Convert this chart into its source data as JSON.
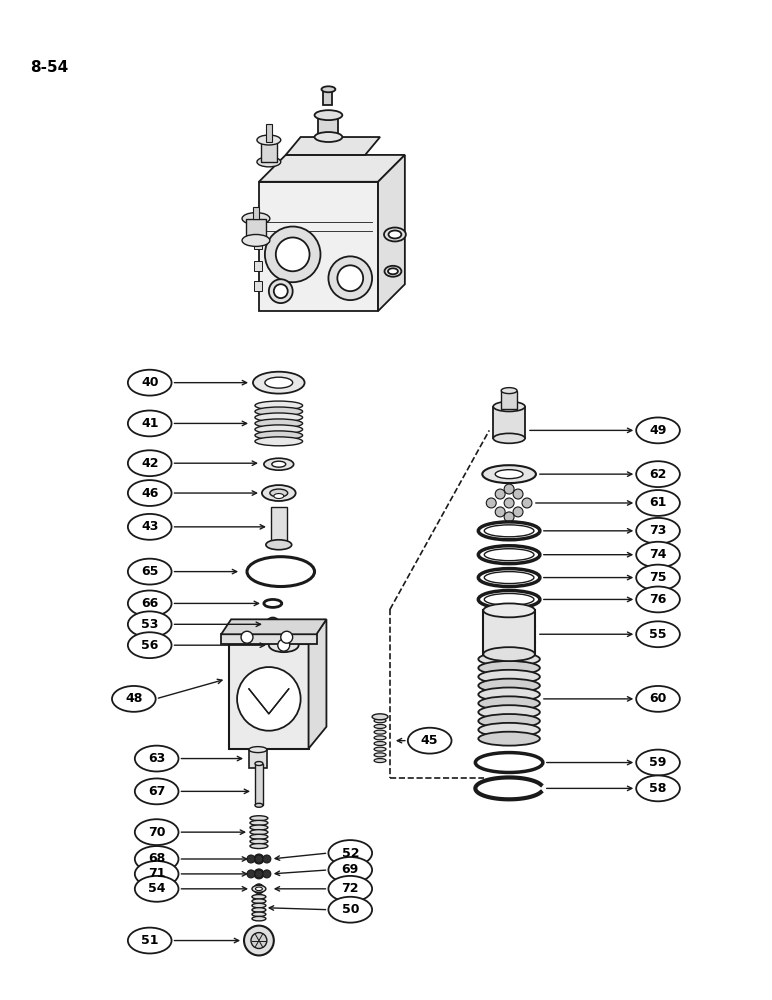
{
  "page_label": "8-54",
  "bg": "#ffffff",
  "lc": "#1a1a1a",
  "fig_w": 7.72,
  "fig_h": 10.0,
  "dpi": 100
}
